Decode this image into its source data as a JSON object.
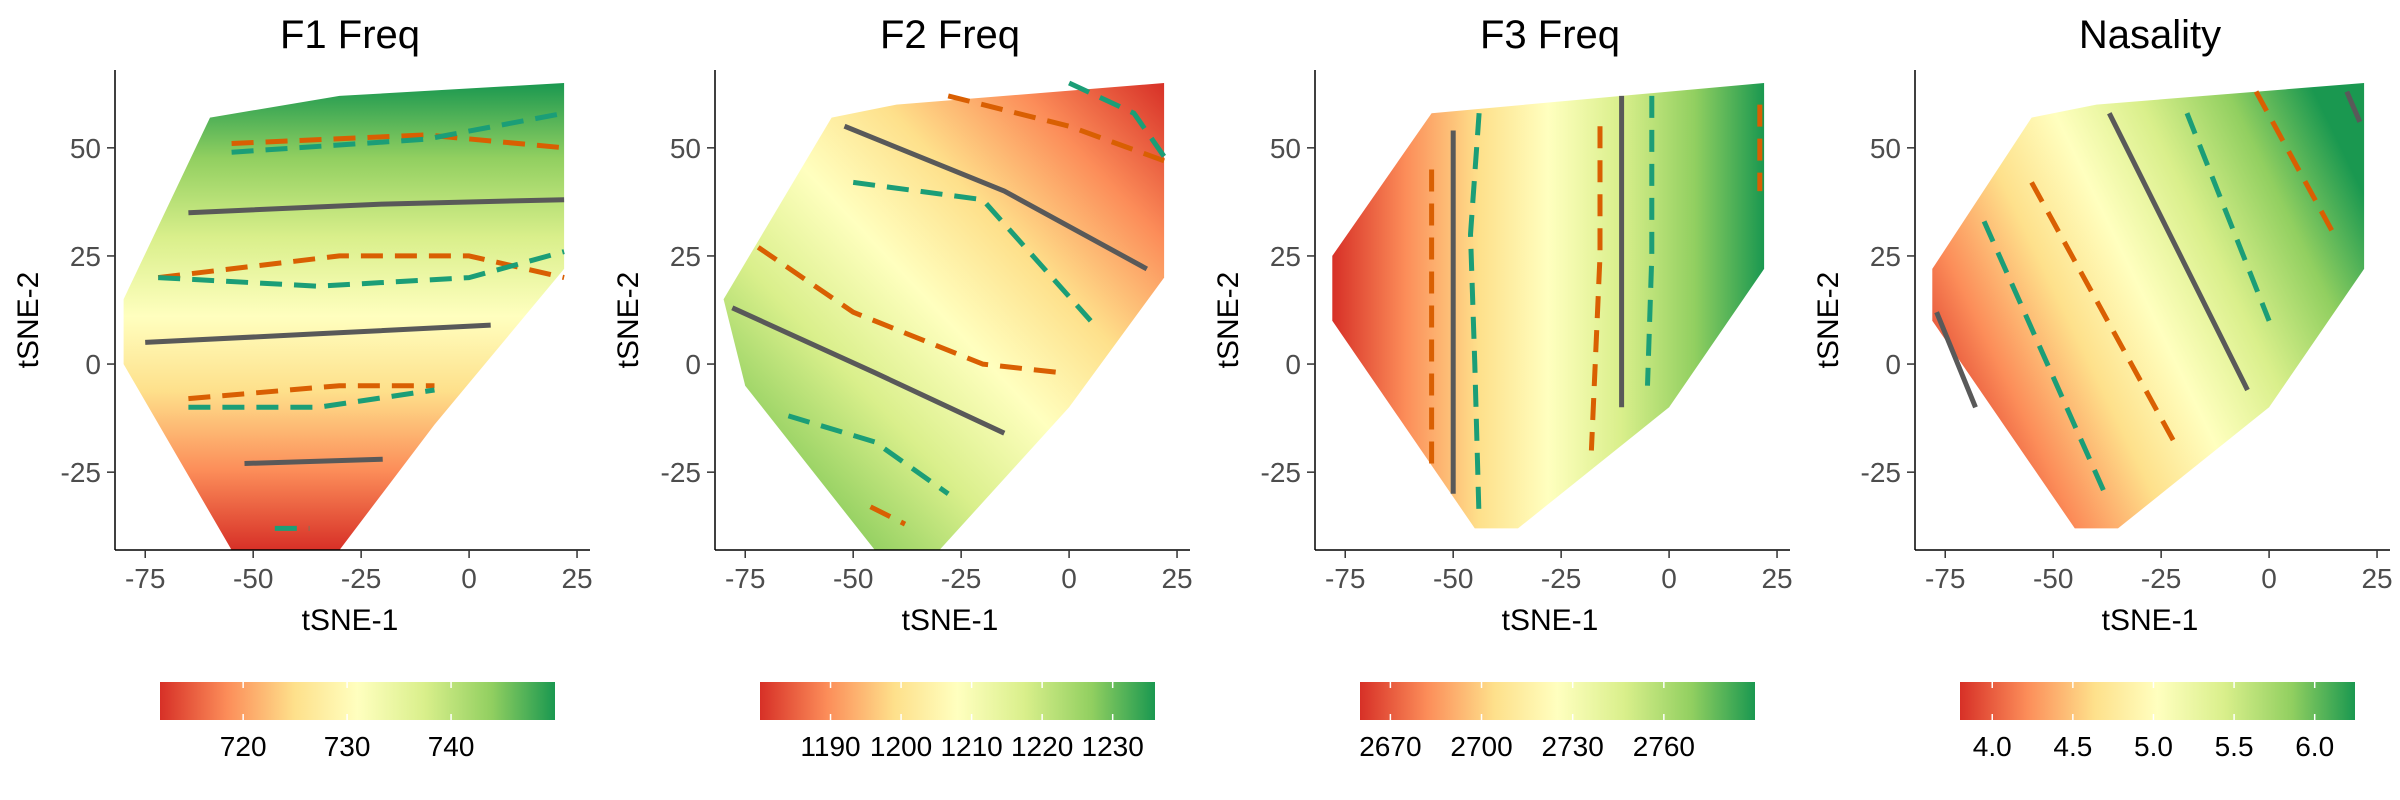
{
  "figure": {
    "colors": {
      "scale": [
        "#d73027",
        "#fc8d59",
        "#fee08b",
        "#ffffbf",
        "#d9ef8b",
        "#91cf60",
        "#1a9850"
      ],
      "contour_gray": "#595959",
      "contour_orange": "#d95f02",
      "contour_teal": "#1b9e77"
    }
  },
  "chart_data": [
    {
      "type": "heatmap",
      "title": "F1 Freq",
      "xlabel": "tSNE-1",
      "ylabel": "tSNE-2",
      "xlim": [
        -82,
        28
      ],
      "ylim": [
        -43,
        68
      ],
      "xticks": [
        -75,
        -50,
        -25,
        0,
        25
      ],
      "yticks": [
        -25,
        0,
        25,
        50
      ],
      "grid": false,
      "gradient": "vertical",
      "colorbar": {
        "range": [
          712,
          750
        ],
        "ticks": [
          720,
          730,
          740
        ]
      },
      "region": [
        [
          -55,
          -43
        ],
        [
          -30,
          -43
        ],
        [
          -8,
          -14
        ],
        [
          22,
          22
        ],
        [
          22,
          65
        ],
        [
          -30,
          62
        ],
        [
          -60,
          57
        ],
        [
          -80,
          15
        ],
        [
          -80,
          0
        ]
      ],
      "contours": [
        {
          "style": "solid",
          "color": "gray",
          "points": [
            [
              -65,
              35
            ],
            [
              -20,
              37
            ],
            [
              22,
              38
            ]
          ]
        },
        {
          "style": "solid",
          "color": "gray",
          "points": [
            [
              -75,
              5
            ],
            [
              -35,
              7
            ],
            [
              5,
              9
            ]
          ]
        },
        {
          "style": "solid",
          "color": "gray",
          "points": [
            [
              -52,
              -23
            ],
            [
              -20,
              -22
            ]
          ]
        },
        {
          "style": "dashed",
          "color": "orange",
          "points": [
            [
              -55,
              51
            ],
            [
              -10,
              53
            ],
            [
              22,
              50
            ]
          ]
        },
        {
          "style": "dashed",
          "color": "teal",
          "points": [
            [
              -55,
              49
            ],
            [
              -10,
              52
            ],
            [
              22,
              58
            ]
          ]
        },
        {
          "style": "dashed",
          "color": "orange",
          "points": [
            [
              -72,
              20
            ],
            [
              -30,
              25
            ],
            [
              0,
              25
            ],
            [
              22,
              20
            ]
          ]
        },
        {
          "style": "dashed",
          "color": "teal",
          "points": [
            [
              -72,
              20
            ],
            [
              -35,
              18
            ],
            [
              0,
              20
            ],
            [
              22,
              26
            ]
          ]
        },
        {
          "style": "dashed",
          "color": "orange",
          "points": [
            [
              -65,
              -8
            ],
            [
              -30,
              -5
            ],
            [
              -8,
              -5
            ]
          ]
        },
        {
          "style": "dashed",
          "color": "teal",
          "points": [
            [
              -65,
              -10
            ],
            [
              -35,
              -10
            ],
            [
              -8,
              -6
            ]
          ]
        },
        {
          "style": "dashed",
          "color": "teal",
          "points": [
            [
              -45,
              -38
            ],
            [
              -37,
              -38
            ]
          ]
        }
      ]
    },
    {
      "type": "heatmap",
      "title": "F2 Freq",
      "xlabel": "tSNE-1",
      "ylabel": "tSNE-2",
      "xlim": [
        -82,
        28
      ],
      "ylim": [
        -43,
        68
      ],
      "xticks": [
        -75,
        -50,
        -25,
        0,
        25
      ],
      "yticks": [
        -25,
        0,
        25,
        50
      ],
      "grid": false,
      "gradient": "diagonal",
      "colorbar": {
        "range": [
          1180,
          1236
        ],
        "ticks": [
          1190,
          1200,
          1210,
          1220,
          1230
        ]
      },
      "region": [
        [
          -45,
          -43
        ],
        [
          -30,
          -43
        ],
        [
          0,
          -10
        ],
        [
          22,
          20
        ],
        [
          22,
          65
        ],
        [
          -40,
          60
        ],
        [
          -55,
          57
        ],
        [
          -80,
          15
        ],
        [
          -75,
          -5
        ]
      ],
      "contours": [
        {
          "style": "solid",
          "color": "gray",
          "points": [
            [
              -52,
              55
            ],
            [
              -15,
              40
            ],
            [
              18,
              22
            ]
          ]
        },
        {
          "style": "solid",
          "color": "gray",
          "points": [
            [
              -78,
              13
            ],
            [
              -45,
              -2
            ],
            [
              -15,
              -16
            ]
          ]
        },
        {
          "style": "dashed",
          "color": "teal",
          "points": [
            [
              -50,
              42
            ],
            [
              -20,
              38
            ],
            [
              5,
              10
            ]
          ]
        },
        {
          "style": "dashed",
          "color": "orange",
          "points": [
            [
              -72,
              27
            ],
            [
              -50,
              12
            ],
            [
              -20,
              0
            ],
            [
              -2,
              -2
            ]
          ]
        },
        {
          "style": "dashed",
          "color": "orange",
          "points": [
            [
              -28,
              62
            ],
            [
              0,
              55
            ],
            [
              22,
              47
            ]
          ]
        },
        {
          "style": "dashed",
          "color": "teal",
          "points": [
            [
              0,
              65
            ],
            [
              15,
              58
            ],
            [
              22,
              48
            ]
          ]
        },
        {
          "style": "dashed",
          "color": "teal",
          "points": [
            [
              -65,
              -12
            ],
            [
              -45,
              -18
            ],
            [
              -28,
              -30
            ]
          ]
        },
        {
          "style": "dashed",
          "color": "orange",
          "points": [
            [
              -46,
              -33
            ],
            [
              -38,
              -37
            ]
          ]
        }
      ]
    },
    {
      "type": "heatmap",
      "title": "F3 Freq",
      "xlabel": "tSNE-1",
      "ylabel": "tSNE-2",
      "xlim": [
        -82,
        28
      ],
      "ylim": [
        -43,
        68
      ],
      "xticks": [
        -75,
        -50,
        -25,
        0,
        25
      ],
      "yticks": [
        -25,
        0,
        25,
        50
      ],
      "grid": false,
      "gradient": "horizontal",
      "colorbar": {
        "range": [
          2660,
          2790
        ],
        "ticks": [
          2670,
          2700,
          2730,
          2760
        ]
      },
      "region": [
        [
          -45,
          -38
        ],
        [
          -35,
          -38
        ],
        [
          0,
          -10
        ],
        [
          22,
          22
        ],
        [
          22,
          65
        ],
        [
          -55,
          58
        ],
        [
          -78,
          25
        ],
        [
          -78,
          10
        ]
      ],
      "contours": [
        {
          "style": "solid",
          "color": "gray",
          "points": [
            [
              -50,
              54
            ],
            [
              -50,
              -30
            ]
          ]
        },
        {
          "style": "solid",
          "color": "gray",
          "points": [
            [
              -11,
              62
            ],
            [
              -11,
              -10
            ]
          ]
        },
        {
          "style": "dashed",
          "color": "teal",
          "points": [
            [
              -44,
              58
            ],
            [
              -46,
              30
            ],
            [
              -45,
              0
            ],
            [
              -44,
              -36
            ]
          ]
        },
        {
          "style": "dashed",
          "color": "orange",
          "points": [
            [
              -55,
              45
            ],
            [
              -55,
              20
            ],
            [
              -55,
              -25
            ]
          ]
        },
        {
          "style": "dashed",
          "color": "orange",
          "points": [
            [
              -16,
              55
            ],
            [
              -16,
              25
            ],
            [
              -18,
              -20
            ]
          ]
        },
        {
          "style": "dashed",
          "color": "teal",
          "points": [
            [
              -4,
              62
            ],
            [
              -4,
              25
            ],
            [
              -5,
              -5
            ]
          ]
        },
        {
          "style": "dashed",
          "color": "orange",
          "points": [
            [
              21,
              60
            ],
            [
              21,
              40
            ]
          ]
        }
      ]
    },
    {
      "type": "heatmap",
      "title": "Nasality",
      "xlabel": "tSNE-1",
      "ylabel": "tSNE-2",
      "xlim": [
        -82,
        28
      ],
      "ylim": [
        -43,
        68
      ],
      "xticks": [
        -75,
        -50,
        -25,
        0,
        25
      ],
      "yticks": [
        -25,
        0,
        25,
        50
      ],
      "grid": false,
      "gradient": "diagonal-steep",
      "colorbar": {
        "range": [
          3.8,
          6.25
        ],
        "ticks": [
          "4.0",
          "4.5",
          "5.0",
          "5.5",
          "6.0"
        ]
      },
      "region": [
        [
          -45,
          -38
        ],
        [
          -35,
          -38
        ],
        [
          0,
          -10
        ],
        [
          22,
          22
        ],
        [
          22,
          65
        ],
        [
          -40,
          60
        ],
        [
          -55,
          57
        ],
        [
          -78,
          22
        ],
        [
          -78,
          10
        ]
      ],
      "contours": [
        {
          "style": "solid",
          "color": "gray",
          "points": [
            [
              -37,
              58
            ],
            [
              -5,
              -6
            ]
          ]
        },
        {
          "style": "solid",
          "color": "gray",
          "points": [
            [
              18,
              63
            ],
            [
              21,
              56
            ]
          ]
        },
        {
          "style": "solid",
          "color": "gray",
          "points": [
            [
              -77,
              12
            ],
            [
              -68,
              -10
            ]
          ]
        },
        {
          "style": "dashed",
          "color": "orange",
          "points": [
            [
              -55,
              42
            ],
            [
              -22,
              -18
            ]
          ]
        },
        {
          "style": "dashed",
          "color": "orange",
          "points": [
            [
              -3,
              63
            ],
            [
              15,
              30
            ]
          ]
        },
        {
          "style": "dashed",
          "color": "teal",
          "points": [
            [
              -66,
              33
            ],
            [
              -38,
              -30
            ]
          ]
        },
        {
          "style": "dashed",
          "color": "teal",
          "points": [
            [
              -19,
              58
            ],
            [
              0,
              10
            ]
          ]
        }
      ]
    }
  ]
}
